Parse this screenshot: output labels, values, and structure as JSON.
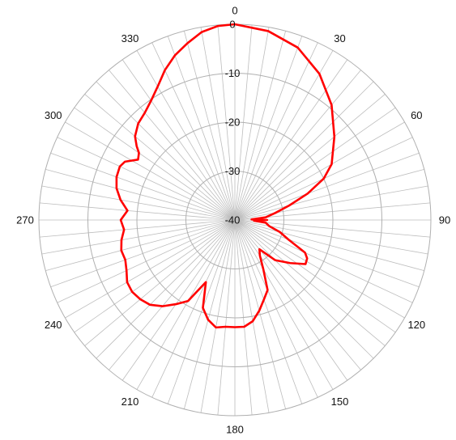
{
  "chart_data": {
    "type": "polar-line",
    "title": "",
    "angle_ticks": [
      "0",
      "30",
      "60",
      "90",
      "120",
      "150",
      "180",
      "210",
      "240",
      "270",
      "300",
      "330"
    ],
    "ring_values": [
      0,
      -10,
      -20,
      -30,
      -40
    ],
    "ring_labels": [
      "0",
      "-10",
      "-20",
      "-30",
      "-40"
    ],
    "r_range": [
      -40,
      0
    ],
    "angle_grid_step_deg": 5,
    "grid": true,
    "series": [
      {
        "color": "#ff0000",
        "points": [
          [
            0,
            0
          ],
          [
            10,
            -0.8
          ],
          [
            20,
            -2.5
          ],
          [
            30,
            -5.5
          ],
          [
            40,
            -9.3
          ],
          [
            50,
            -13.5
          ],
          [
            60,
            -17.2
          ],
          [
            65,
            -20.0
          ],
          [
            70,
            -24.2
          ],
          [
            75,
            -28.5
          ],
          [
            80,
            -31.6
          ],
          [
            85,
            -33.7
          ],
          [
            88,
            -36.6
          ],
          [
            90,
            -33.4
          ],
          [
            92,
            -36.1
          ],
          [
            95,
            -33.7
          ],
          [
            100,
            -32.9
          ],
          [
            105,
            -30.5
          ],
          [
            110,
            -28.4
          ],
          [
            115,
            -24.2
          ],
          [
            118,
            -23.3
          ],
          [
            122,
            -23.0
          ],
          [
            128,
            -25.7
          ],
          [
            135,
            -28.4
          ],
          [
            140,
            -32.2
          ],
          [
            145,
            -31.1
          ],
          [
            150,
            -28.4
          ],
          [
            155,
            -24.2
          ],
          [
            160,
            -22.7
          ],
          [
            165,
            -20.8
          ],
          [
            170,
            -19.0
          ],
          [
            175,
            -18.1
          ],
          [
            180,
            -18.1
          ],
          [
            185,
            -18.1
          ],
          [
            190,
            -17.7
          ],
          [
            195,
            -18.9
          ],
          [
            200,
            -20.9
          ],
          [
            205,
            -26.0
          ],
          [
            210,
            -20.9
          ],
          [
            215,
            -19.0
          ],
          [
            220,
            -17.0
          ],
          [
            225,
            -15.5
          ],
          [
            230,
            -14.8
          ],
          [
            235,
            -14.4
          ],
          [
            240,
            -14.6
          ],
          [
            245,
            -15.6
          ],
          [
            250,
            -16.2
          ],
          [
            255,
            -16.0
          ],
          [
            260,
            -16.5
          ],
          [
            265,
            -17.3
          ],
          [
            270,
            -16.7
          ],
          [
            275,
            -18.0
          ],
          [
            280,
            -16.3
          ],
          [
            285,
            -15.0
          ],
          [
            290,
            -14.3
          ],
          [
            295,
            -14.1
          ],
          [
            298,
            -14.6
          ],
          [
            302,
            -16.7
          ],
          [
            305,
            -16.1
          ],
          [
            307,
            -14.9
          ],
          [
            310,
            -13.4
          ],
          [
            315,
            -12.1
          ],
          [
            320,
            -11.4
          ],
          [
            325,
            -10.2
          ],
          [
            330,
            -8.5
          ],
          [
            335,
            -6.2
          ],
          [
            340,
            -4.2
          ],
          [
            345,
            -2.6
          ],
          [
            350,
            -1.0
          ],
          [
            355,
            -0.2
          ],
          [
            360,
            0
          ]
        ]
      }
    ]
  }
}
